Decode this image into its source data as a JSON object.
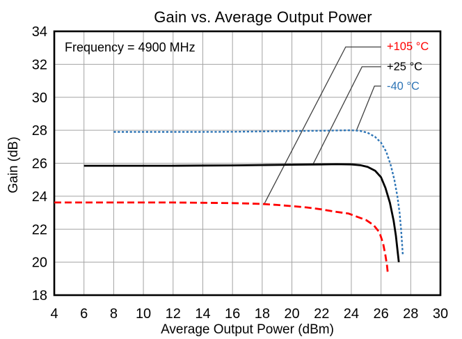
{
  "figure": {
    "background": "#ffffff",
    "grid_color": "#a3a3a3",
    "frame_color": "#000000",
    "callout_line_color": "#404040",
    "text_color": "#000000"
  },
  "chart_data": {
    "type": "line",
    "title": "Gain vs. Average Output Power",
    "annotation": "Frequency = 4900 MHz",
    "xlabel": "Average Output Power (dBm)",
    "ylabel": "Gain (dB)",
    "xlim": [
      4,
      30
    ],
    "ylim": [
      18,
      34
    ],
    "xticks": [
      4,
      6,
      8,
      10,
      12,
      14,
      16,
      18,
      20,
      22,
      24,
      26,
      28,
      30
    ],
    "yticks": [
      18,
      20,
      22,
      24,
      26,
      28,
      30,
      32,
      34
    ],
    "grid": true,
    "legend_position": "inside top-right with callout leader lines",
    "series": [
      {
        "name": "+105 °C",
        "color": "#ff0000",
        "style": "dashed",
        "dash": [
          10,
          5
        ],
        "width": 2.8,
        "points": [
          [
            4,
            23.62
          ],
          [
            6,
            23.62
          ],
          [
            8,
            23.62
          ],
          [
            10,
            23.62
          ],
          [
            12,
            23.62
          ],
          [
            14,
            23.6
          ],
          [
            16,
            23.58
          ],
          [
            17,
            23.56
          ],
          [
            18,
            23.53
          ],
          [
            19,
            23.47
          ],
          [
            20,
            23.4
          ],
          [
            21,
            23.32
          ],
          [
            22,
            23.2
          ],
          [
            23,
            23.05
          ],
          [
            23.8,
            22.95
          ],
          [
            24.4,
            22.75
          ],
          [
            25,
            22.55
          ],
          [
            25.5,
            22.25
          ],
          [
            25.9,
            21.8
          ],
          [
            26.15,
            21.1
          ],
          [
            26.3,
            20.4
          ],
          [
            26.4,
            19.8
          ],
          [
            26.45,
            19.4
          ]
        ]
      },
      {
        "name": "+25 °C",
        "color": "#000000",
        "style": "solid",
        "dash": null,
        "width": 2.8,
        "points": [
          [
            6,
            25.85
          ],
          [
            8,
            25.85
          ],
          [
            10,
            25.85
          ],
          [
            12,
            25.85
          ],
          [
            14,
            25.86
          ],
          [
            16,
            25.87
          ],
          [
            18,
            25.89
          ],
          [
            20,
            25.91
          ],
          [
            22,
            25.93
          ],
          [
            23,
            25.94
          ],
          [
            24,
            25.93
          ],
          [
            24.6,
            25.88
          ],
          [
            25.1,
            25.78
          ],
          [
            25.6,
            25.55
          ],
          [
            26,
            25.15
          ],
          [
            26.3,
            24.5
          ],
          [
            26.6,
            23.6
          ],
          [
            26.85,
            22.5
          ],
          [
            27,
            21.6
          ],
          [
            27.1,
            20.8
          ],
          [
            27.2,
            20.0
          ]
        ]
      },
      {
        "name": "-40 °C",
        "color": "#2e75b6",
        "style": "dotted",
        "dash": [
          3.2,
          2.6
        ],
        "width": 2.4,
        "points": [
          [
            8,
            27.9
          ],
          [
            10,
            27.9
          ],
          [
            12,
            27.9
          ],
          [
            14,
            27.9
          ],
          [
            16,
            27.91
          ],
          [
            18,
            27.93
          ],
          [
            20,
            27.95
          ],
          [
            22,
            27.97
          ],
          [
            23,
            27.99
          ],
          [
            24,
            28.0
          ],
          [
            24.6,
            27.96
          ],
          [
            25.1,
            27.85
          ],
          [
            25.6,
            27.6
          ],
          [
            26,
            27.25
          ],
          [
            26.35,
            26.7
          ],
          [
            26.65,
            25.9
          ],
          [
            26.9,
            25.0
          ],
          [
            27.1,
            24.0
          ],
          [
            27.25,
            23.0
          ],
          [
            27.35,
            22.0
          ],
          [
            27.42,
            21.1
          ],
          [
            27.47,
            20.4
          ]
        ]
      }
    ],
    "callouts": [
      {
        "label": "+105 °C",
        "color": "#ff0000",
        "line": [
          [
            18.15,
            23.55
          ],
          [
            23.62,
            33.05
          ],
          [
            26.0,
            33.05
          ]
        ],
        "label_pos": [
          26.2,
          33.05
        ]
      },
      {
        "label": "+25 °C",
        "color": "#000000",
        "line": [
          [
            21.4,
            25.9
          ],
          [
            24.72,
            31.85
          ],
          [
            26.0,
            31.85
          ]
        ],
        "label_pos": [
          26.2,
          31.85
        ]
      },
      {
        "label": "-40 °C",
        "color": "#2e75b6",
        "line": [
          [
            24.35,
            28.0
          ],
          [
            25.56,
            30.68
          ],
          [
            26.0,
            30.68
          ]
        ],
        "label_pos": [
          26.2,
          30.68
        ]
      }
    ]
  }
}
